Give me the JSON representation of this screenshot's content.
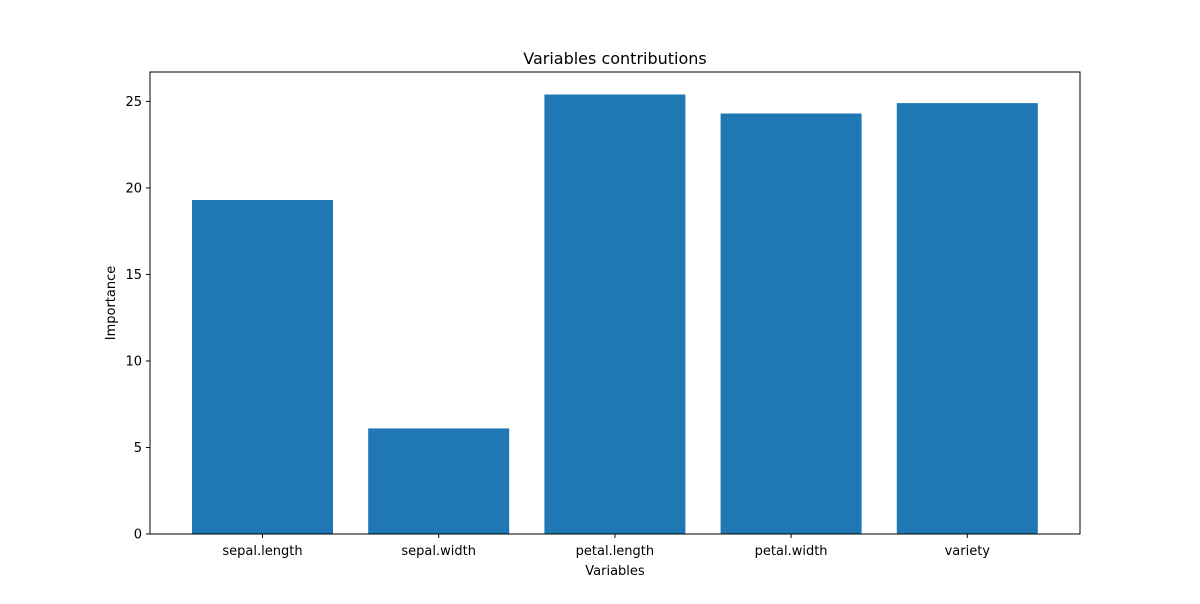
{
  "chart_data": {
    "type": "bar",
    "title": "Variables contributions",
    "xlabel": "Variables",
    "ylabel": "Importance",
    "categories": [
      "sepal.length",
      "sepal.width",
      "petal.length",
      "petal.width",
      "variety"
    ],
    "values": [
      19.3,
      6.1,
      25.4,
      24.3,
      24.9
    ],
    "ylim": [
      0,
      26.7
    ],
    "yticks": [
      0,
      5,
      10,
      15,
      20,
      25
    ],
    "bar_color": "#1f77b4",
    "grid": false,
    "legend": "none"
  }
}
